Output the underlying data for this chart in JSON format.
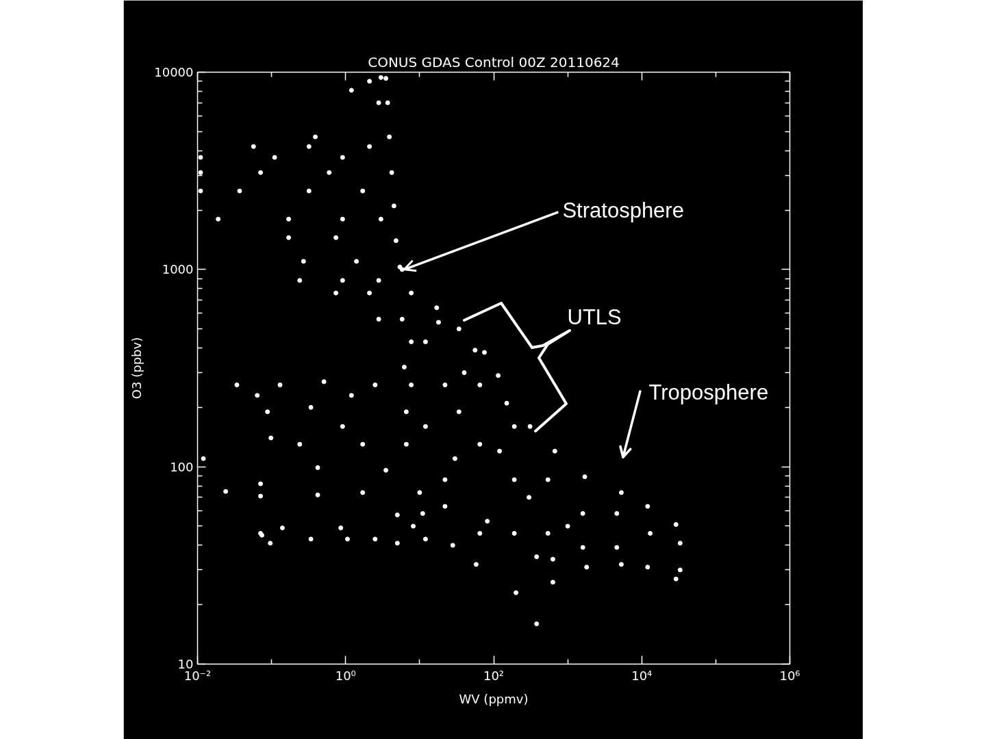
{
  "chart_data": {
    "type": "scatter",
    "title": "CONUS GDAS Control 00Z 20110624",
    "xlabel": "WV (ppmv)",
    "ylabel": "O3 (ppbv)",
    "log": "xy",
    "xlim": [
      0.01,
      1000000
    ],
    "ylim": [
      10,
      10000
    ],
    "xticks": [
      {
        "value": 0.01,
        "label": "10⁻²"
      },
      {
        "value": 0.1,
        "label": null
      },
      {
        "value": 1,
        "label": "10⁰"
      },
      {
        "value": 10,
        "label": null
      },
      {
        "value": 100,
        "label": "10²"
      },
      {
        "value": 1000,
        "label": null
      },
      {
        "value": 10000,
        "label": "10⁴"
      },
      {
        "value": 100000,
        "label": null
      },
      {
        "value": 1000000,
        "label": "10⁶"
      }
    ],
    "yticks": [
      10,
      {
        "value": 20,
        "label": null
      },
      {
        "value": 30,
        "label": null
      },
      {
        "value": 40,
        "label": null
      },
      {
        "value": 50,
        "label": null
      },
      {
        "value": 60,
        "label": null
      },
      {
        "value": 70,
        "label": null
      },
      {
        "value": 80,
        "label": null
      },
      {
        "value": 90,
        "label": null
      },
      100,
      {
        "value": 200,
        "label": null
      },
      {
        "value": 300,
        "label": null
      },
      {
        "value": 400,
        "label": null
      },
      {
        "value": 500,
        "label": null
      },
      {
        "value": 600,
        "label": null
      },
      {
        "value": 700,
        "label": null
      },
      {
        "value": 800,
        "label": null
      },
      {
        "value": 900,
        "label": null
      },
      1000,
      {
        "value": 2000,
        "label": null
      },
      {
        "value": 3000,
        "label": null
      },
      {
        "value": 4000,
        "label": null
      },
      {
        "value": 5000,
        "label": null
      },
      {
        "value": 6000,
        "label": null
      },
      {
        "value": 7000,
        "label": null
      },
      {
        "value": 8000,
        "label": null
      },
      {
        "value": 9000,
        "label": null
      },
      10000
    ],
    "marker": "circle",
    "series": [
      {
        "color": "#ffffff",
        "x": [
          3.0,
          3.5,
          2.1,
          1.2,
          2.8,
          3.7,
          0.39,
          3.9,
          0.057,
          0.32,
          2.1,
          0.011,
          0.11,
          0.91,
          4.2,
          0.011,
          0.071,
          0.6,
          0.011,
          0.037,
          0.32,
          1.7,
          4.5,
          0.019,
          0.17,
          0.91,
          3.0,
          0.17,
          0.74,
          4.8,
          0.27,
          1.4,
          5.4,
          0.24,
          0.91,
          2.8,
          5.8,
          0.74,
          2.1,
          7.7,
          2.8,
          5.8,
          17,
          18,
          34,
          56,
          75,
          115,
          150,
          310,
          670,
          1700,
          5300,
          12000,
          29000,
          33000,
          33000,
          29000,
          12000,
          5300,
          1800,
          630,
          380,
          380,
          630,
          200,
          58,
          28,
          11,
          7.7,
          7.7,
          12,
          22,
          12,
          34,
          65,
          22,
          65,
          190,
          190,
          540,
          1600,
          4600,
          13000,
          4600,
          1600,
          540,
          190,
          65,
          22,
          10,
          6.6,
          6.2,
          6.6,
          0.034,
          0.064,
          0.13,
          0.088,
          0.098,
          0.012,
          0.024,
          0.071,
          0.071,
          0.42,
          0.51,
          0.34,
          0.24,
          0.42,
          0.91,
          1.2,
          2.5,
          1.7,
          3.5,
          1.7,
          5.0,
          2.5,
          0.86,
          0.14,
          0.071,
          0.096,
          0.074,
          0.34,
          1.06,
          5.0,
          8.2,
          12,
          82,
          30,
          120,
          300,
          1000,
          40
        ],
        "values": [
          9400,
          9300,
          9000,
          8100,
          7000,
          7000,
          4700,
          4700,
          4200,
          4200,
          4200,
          3700,
          3700,
          3700,
          3100,
          3100,
          3100,
          3100,
          2500,
          2500,
          2500,
          2500,
          2100,
          1800,
          1800,
          1800,
          1800,
          1450,
          1450,
          1400,
          1100,
          1100,
          1030,
          880,
          880,
          880,
          1000,
          760,
          760,
          760,
          560,
          560,
          640,
          540,
          500,
          390,
          380,
          290,
          210,
          160,
          120,
          89,
          74,
          63,
          51,
          41,
          30,
          27,
          31,
          32,
          31,
          34,
          35,
          16,
          26,
          23,
          32,
          40,
          58,
          430,
          260,
          430,
          260,
          160,
          190,
          260,
          86,
          130,
          86,
          160,
          86,
          58,
          58,
          46,
          39,
          39,
          46,
          46,
          46,
          63,
          74,
          130,
          320,
          190,
          260,
          230,
          260,
          190,
          140,
          110,
          75,
          82,
          71,
          72,
          270,
          200,
          130,
          99,
          160,
          230,
          260,
          130,
          96,
          74,
          57,
          43,
          49,
          49,
          46,
          41,
          45,
          43,
          43,
          41,
          50,
          43,
          53,
          110,
          120,
          70,
          50,
          300
        ]
      }
    ],
    "annotations": [
      {
        "text": "Stratosphere",
        "x": 6.2,
        "y": 1000
      },
      "UTLS",
      "Troposphere"
    ]
  }
}
